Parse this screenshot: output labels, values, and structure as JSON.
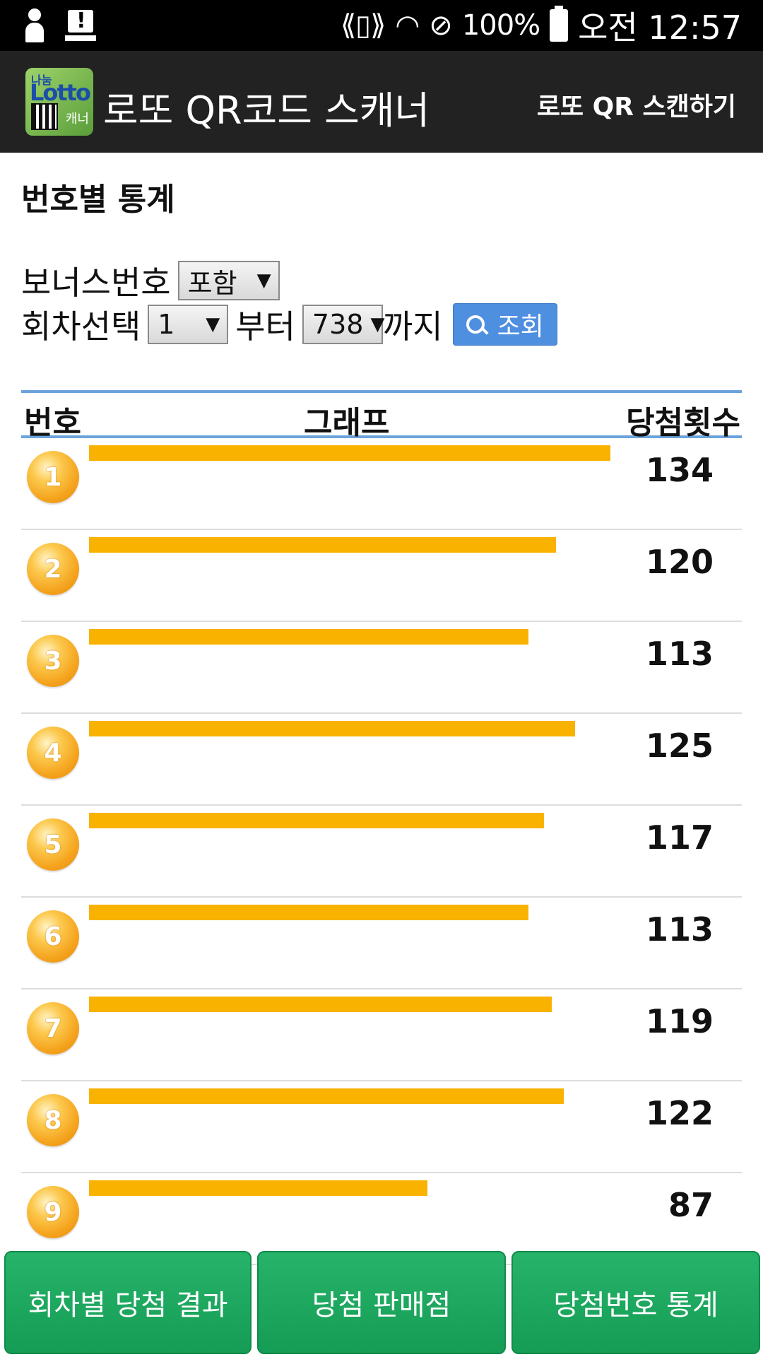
{
  "status_bar": {
    "battery_text": "100%",
    "time": "오전 12:57",
    "icons": [
      "person-icon",
      "alert-icon",
      "vibrate-icon",
      "wifi-icon",
      "do-not-disturb-icon",
      "battery-icon"
    ]
  },
  "action_bar": {
    "logo_top": "나눔",
    "logo_main": "Lotto",
    "logo_sub": "캐너",
    "title": "로또 QR코드 스캐너",
    "scan_button": "로또 QR 스캔하기"
  },
  "section": {
    "title": "번호별 통계"
  },
  "filters": {
    "bonus_label": "보너스번호",
    "bonus_value": "포함",
    "round_label": "회차선택",
    "from_value": "1",
    "from_label": "부터",
    "to_value": "738",
    "to_label": "까지",
    "search_button": "조회"
  },
  "table": {
    "headers": {
      "number": "번호",
      "graph": "그래프",
      "count": "당첨횟수"
    }
  },
  "chart_data": {
    "type": "bar",
    "categories": [
      "1",
      "2",
      "3",
      "4",
      "5",
      "6",
      "7",
      "8",
      "9"
    ],
    "values": [
      134,
      120,
      113,
      125,
      117,
      113,
      119,
      122,
      87
    ],
    "xlabel": "번호",
    "ylabel": "당첨횟수",
    "bar_color": "#f9b200"
  },
  "bottom_nav": {
    "btn1": "회차별 당첨 결과",
    "btn2": "당첨 판매점",
    "btn3": "당첨번호 통계"
  }
}
